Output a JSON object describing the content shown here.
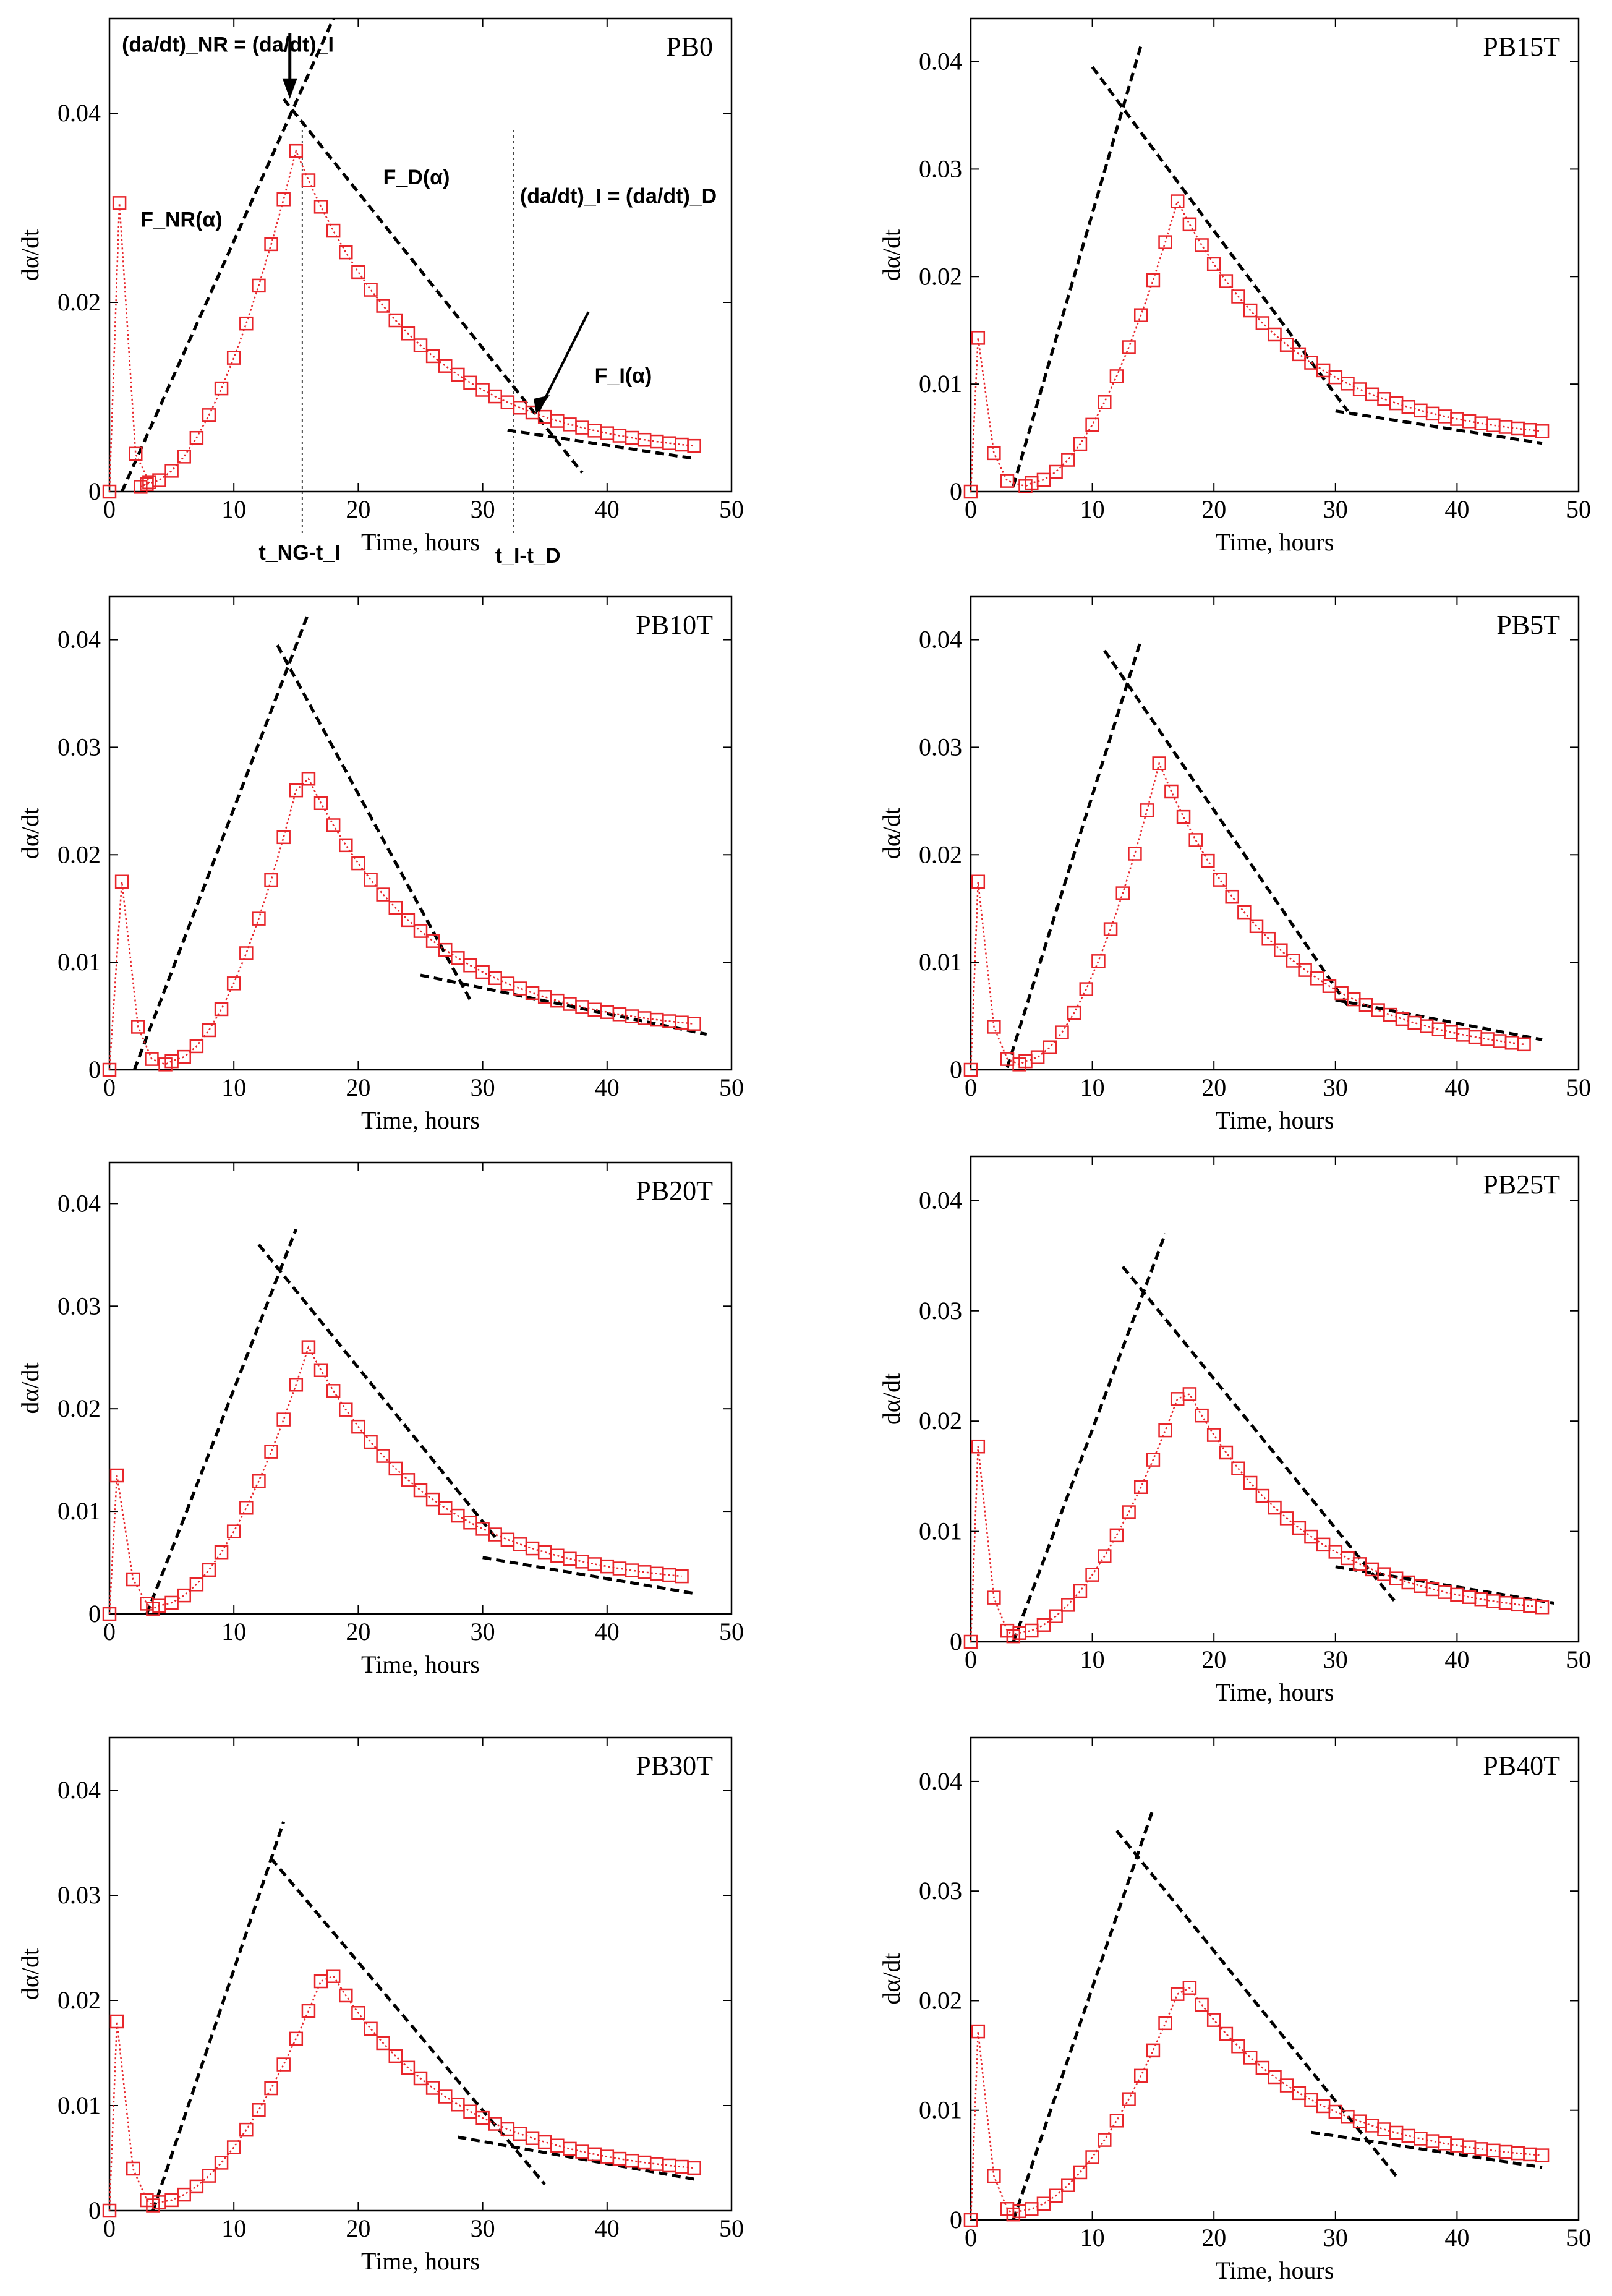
{
  "figure": {
    "annotations": {
      "f_nr": "F_NR(α)",
      "f_d": "F_D(α)",
      "f_i": "F_I(α)",
      "eq1": "(da/dt)_NR = (da/dt)_I",
      "eq2": "(da/dt)_I = (da/dt)_D",
      "t1": "t_NG-t_I",
      "t2": "t_I-t_D"
    }
  },
  "chart_data": [
    {
      "type": "scatter",
      "title": "PB0",
      "xlabel": "Time, hours",
      "ylabel": "dα/dt",
      "xlim": [
        0,
        50
      ],
      "ylim": [
        0,
        0.05
      ],
      "xticks": [
        0,
        10,
        20,
        30,
        40,
        50
      ],
      "yticks": [
        0,
        0.02,
        0.04
      ],
      "peak": {
        "t": 0.8,
        "h": 0.0305
      },
      "t_start": 3,
      "fit_top": {
        "t": 15,
        "h": 0.036
      },
      "max_t": 47,
      "tail_end": 0.0035,
      "nucl_line": [
        [
          1,
          0
        ],
        [
          18,
          0.05
        ]
      ],
      "diff_line": [
        [
          14,
          0.0415
        ],
        [
          38,
          0.002
        ]
      ],
      "tail_line": [
        [
          32,
          0.0065
        ],
        [
          47,
          0.0035
        ]
      ],
      "guides": [
        15.5,
        32.5
      ]
    },
    {
      "type": "scatter",
      "title": "PB15T",
      "xlabel": "Time, hours",
      "ylabel": "dα/dt",
      "xlim": [
        0,
        50
      ],
      "ylim": [
        0,
        0.044
      ],
      "xticks": [
        0,
        10,
        20,
        30,
        40,
        50
      ],
      "yticks": [
        0,
        0.01,
        0.02,
        0.03,
        0.04
      ],
      "peak": {
        "t": 0.6,
        "h": 0.0143
      },
      "t_start": 5,
      "fit_top": {
        "t": 17,
        "h": 0.027
      },
      "max_t": 47,
      "tail_end": 0.0045,
      "nucl_line": [
        [
          3.5,
          0.0005
        ],
        [
          14,
          0.0415
        ]
      ],
      "diff_line": [
        [
          10,
          0.0395
        ],
        [
          31,
          0.0075
        ]
      ],
      "tail_line": [
        [
          30,
          0.0075
        ],
        [
          47,
          0.0045
        ]
      ],
      "guides": []
    },
    {
      "type": "scatter",
      "title": "PB10T",
      "xlabel": "Time, hours",
      "ylabel": "dα/dt",
      "xlim": [
        0,
        50
      ],
      "ylim": [
        0,
        0.044
      ],
      "xticks": [
        0,
        10,
        20,
        30,
        40,
        50
      ],
      "yticks": [
        0,
        0.01,
        0.02,
        0.03,
        0.04
      ],
      "peak": {
        "t": 1,
        "h": 0.0175
      },
      "t_start": 5,
      "fit_top": {
        "t": 15.5,
        "h": 0.0283
      },
      "max_t": 47,
      "tail_end": 0.0032,
      "nucl_line": [
        [
          2,
          0
        ],
        [
          16,
          0.0425
        ]
      ],
      "diff_line": [
        [
          13.5,
          0.0395
        ],
        [
          29,
          0.0065
        ]
      ],
      "tail_line": [
        [
          25,
          0.0088
        ],
        [
          48,
          0.0033
        ]
      ],
      "guides": []
    },
    {
      "type": "scatter",
      "title": "PB5T",
      "xlabel": "Time, hours",
      "ylabel": "dα/dt",
      "xlim": [
        0,
        50
      ],
      "ylim": [
        0,
        0.044
      ],
      "xticks": [
        0,
        10,
        20,
        30,
        40,
        50
      ],
      "yticks": [
        0,
        0.01,
        0.02,
        0.03,
        0.04
      ],
      "peak": {
        "t": 0.6,
        "h": 0.0175
      },
      "t_start": 4.5,
      "fit_top": {
        "t": 15.5,
        "h": 0.0285
      },
      "max_t": 46,
      "tail_end": 0.001,
      "nucl_line": [
        [
          3,
          0.0002
        ],
        [
          14,
          0.04
        ]
      ],
      "diff_line": [
        [
          11,
          0.039
        ],
        [
          31,
          0.006
        ]
      ],
      "tail_line": [
        [
          30,
          0.0065
        ],
        [
          47,
          0.0028
        ]
      ],
      "guides": []
    },
    {
      "type": "scatter",
      "title": "PB20T",
      "xlabel": "Time, hours",
      "ylabel": "dα/dt",
      "xlim": [
        0,
        50
      ],
      "ylim": [
        0,
        0.044
      ],
      "xticks": [
        0,
        10,
        20,
        30,
        40,
        50
      ],
      "yticks": [
        0,
        0.01,
        0.02,
        0.03,
        0.04
      ],
      "peak": {
        "t": 0.6,
        "h": 0.0135
      },
      "t_start": 4,
      "fit_top": {
        "t": 16,
        "h": 0.026
      },
      "max_t": 46,
      "tail_end": 0.0025,
      "nucl_line": [
        [
          3,
          0
        ],
        [
          15,
          0.0375
        ]
      ],
      "diff_line": [
        [
          12,
          0.036
        ],
        [
          31,
          0.0075
        ]
      ],
      "tail_line": [
        [
          30,
          0.0055
        ],
        [
          47,
          0.002
        ]
      ],
      "guides": []
    },
    {
      "type": "scatter",
      "title": "PB25T",
      "xlabel": "Time, hours",
      "ylabel": "dα/dt",
      "xlim": [
        0,
        50
      ],
      "ylim": [
        0,
        0.044
      ],
      "xticks": [
        0,
        10,
        20,
        30,
        40,
        50
      ],
      "yticks": [
        0,
        0.01,
        0.02,
        0.03,
        0.04
      ],
      "peak": {
        "t": 0.6,
        "h": 0.0177
      },
      "t_start": 4,
      "fit_top": {
        "t": 17.5,
        "h": 0.0235
      },
      "max_t": 47,
      "tail_end": 0.002,
      "nucl_line": [
        [
          3.5,
          0
        ],
        [
          16,
          0.037
        ]
      ],
      "diff_line": [
        [
          12.5,
          0.034
        ],
        [
          35,
          0.0035
        ]
      ],
      "tail_line": [
        [
          30,
          0.0068
        ],
        [
          48,
          0.0035
        ]
      ],
      "guides": []
    },
    {
      "type": "scatter",
      "title": "PB30T",
      "xlabel": "Time, hours",
      "ylabel": "dα/dt",
      "xlim": [
        0,
        50
      ],
      "ylim": [
        0,
        0.045
      ],
      "xticks": [
        0,
        10,
        20,
        30,
        40,
        50
      ],
      "yticks": [
        0,
        0.01,
        0.02,
        0.03,
        0.04
      ],
      "peak": {
        "t": 0.6,
        "h": 0.018
      },
      "t_start": 4,
      "fit_top": {
        "t": 17.5,
        "h": 0.0233
      },
      "max_t": 47,
      "tail_end": 0.003,
      "nucl_line": [
        [
          3.5,
          0
        ],
        [
          14,
          0.037
        ]
      ],
      "diff_line": [
        [
          13,
          0.0335
        ],
        [
          35,
          0.0025
        ]
      ],
      "tail_line": [
        [
          28,
          0.007
        ],
        [
          47,
          0.003
        ]
      ],
      "guides": []
    },
    {
      "type": "scatter",
      "title": "PB40T",
      "xlabel": "Time, hours",
      "ylabel": "dα/dt",
      "xlim": [
        0,
        50
      ],
      "ylim": [
        0,
        0.044
      ],
      "xticks": [
        0,
        10,
        20,
        30,
        40,
        50
      ],
      "yticks": [
        0,
        0.01,
        0.02,
        0.03,
        0.04
      ],
      "peak": {
        "t": 0.6,
        "h": 0.0172
      },
      "t_start": 4,
      "fit_top": {
        "t": 17.5,
        "h": 0.022
      },
      "max_t": 47,
      "tail_end": 0.005,
      "nucl_line": [
        [
          3.5,
          0
        ],
        [
          15,
          0.0375
        ]
      ],
      "diff_line": [
        [
          12,
          0.0355
        ],
        [
          35,
          0.004
        ]
      ],
      "tail_line": [
        [
          28,
          0.008
        ],
        [
          47,
          0.0048
        ]
      ],
      "guides": []
    }
  ]
}
